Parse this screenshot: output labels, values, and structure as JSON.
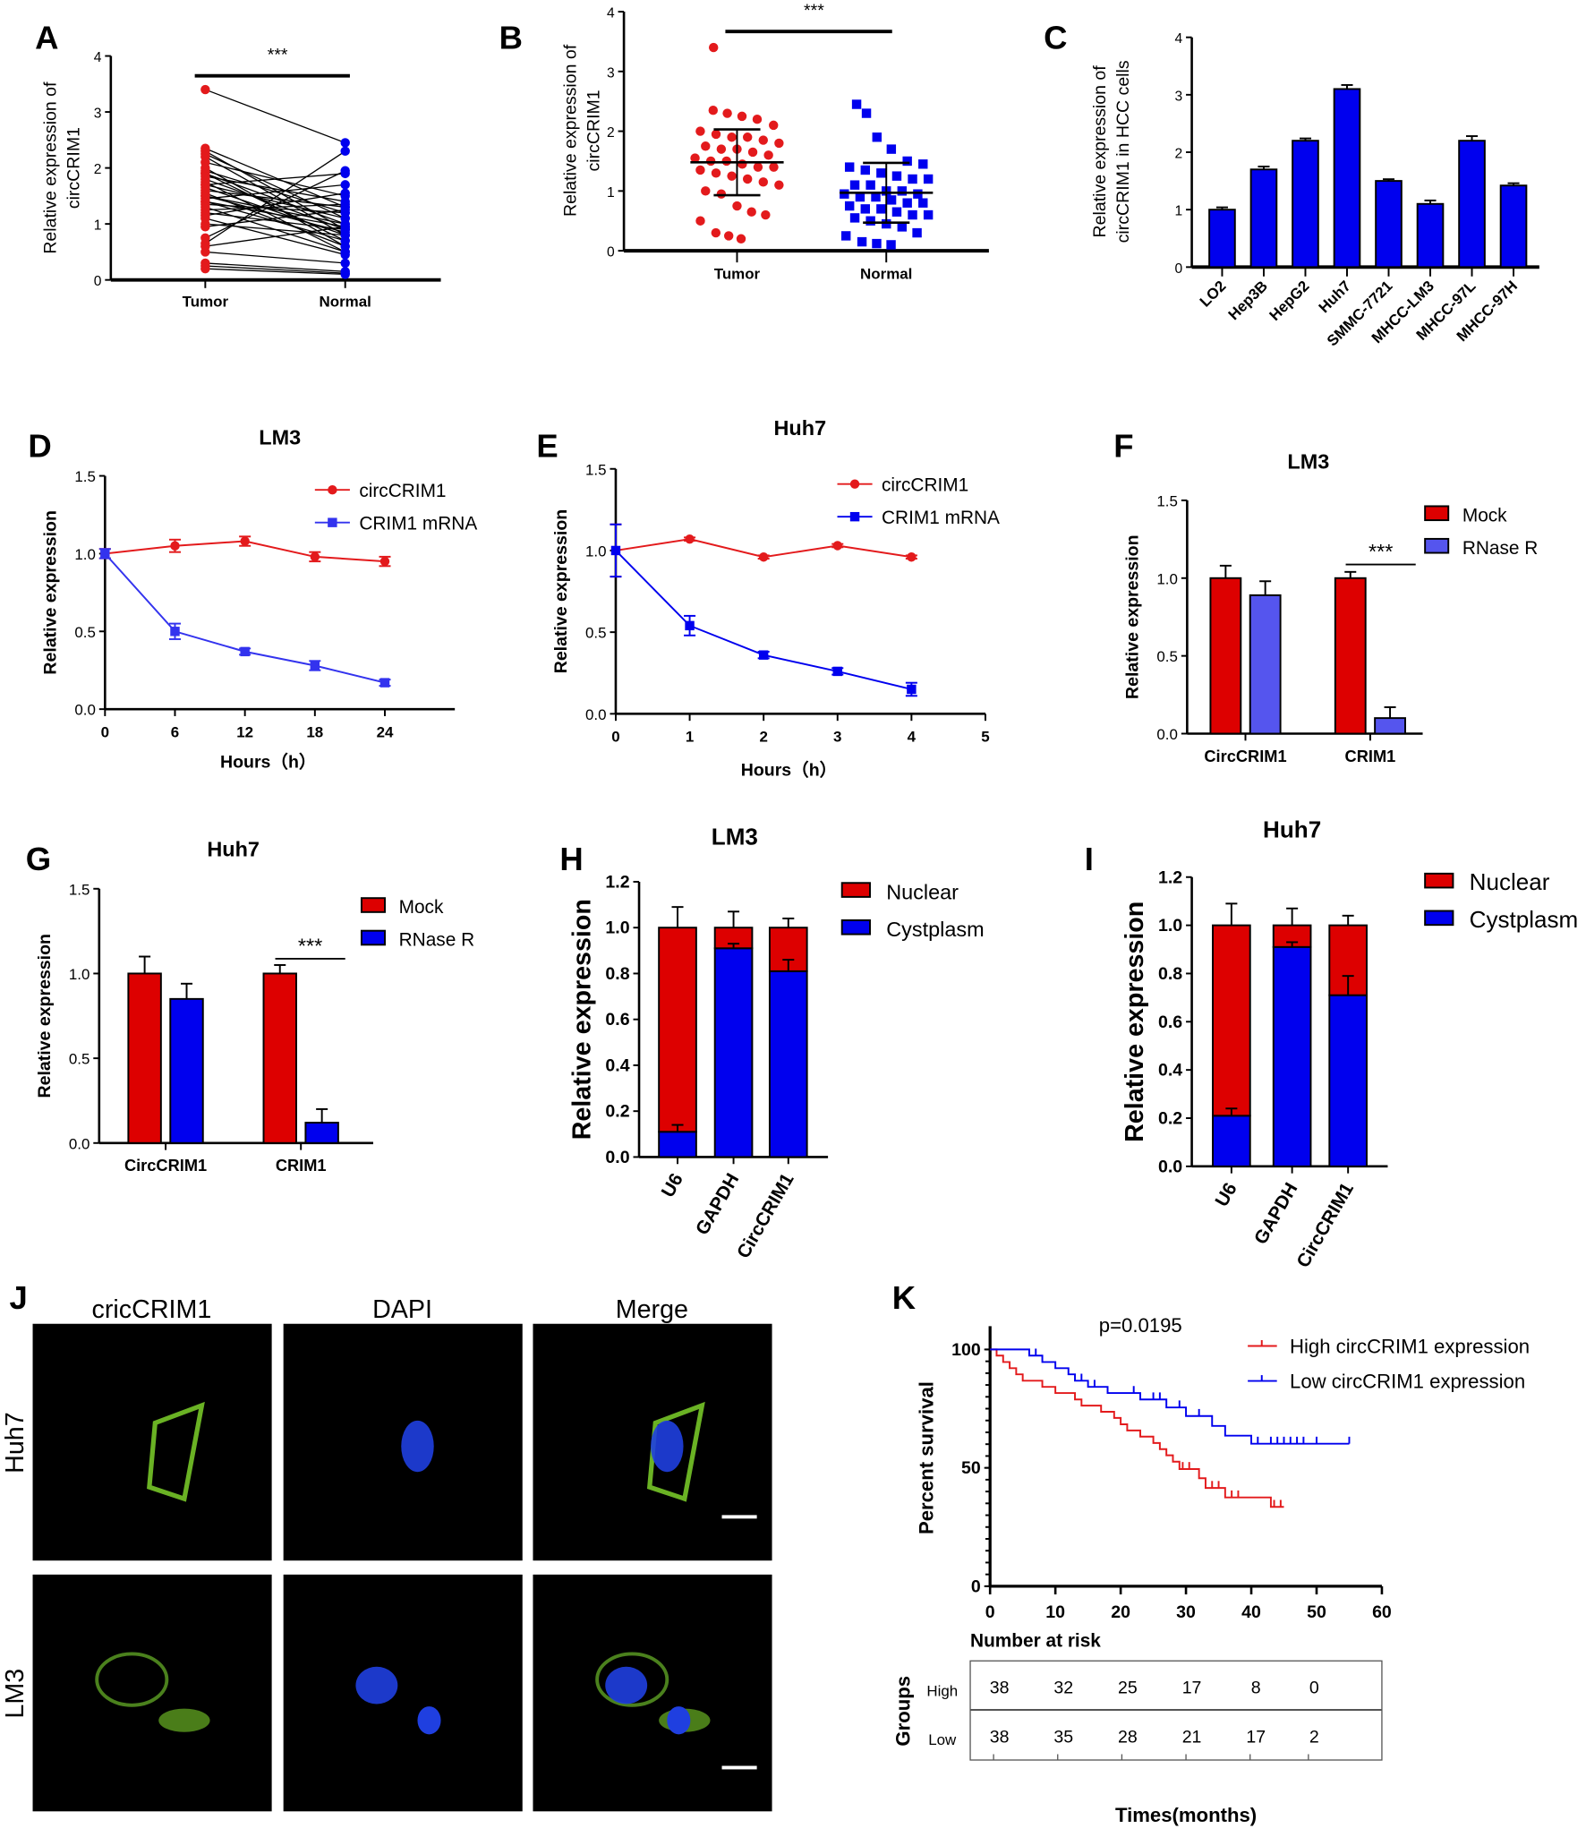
{
  "chart_data": [
    {
      "panel": "A",
      "type": "line",
      "ylabel_lines": [
        "Relative expression of",
        "circCRIM1"
      ],
      "categories": [
        "Tumor",
        "Normal"
      ],
      "yticks": [
        "0",
        "1",
        "2",
        "3",
        "4"
      ],
      "ylim": [
        0,
        4
      ],
      "significance": "***",
      "tumor": [
        3.4,
        2.35,
        2.3,
        2.25,
        2.2,
        2.1,
        2.0,
        1.95,
        1.9,
        1.9,
        1.85,
        1.8,
        1.75,
        1.7,
        1.7,
        1.65,
        1.6,
        1.55,
        1.5,
        1.5,
        1.45,
        1.4,
        1.4,
        1.35,
        1.3,
        1.25,
        1.2,
        1.15,
        1.1,
        1.0,
        0.95,
        0.75,
        0.65,
        0.6,
        0.5,
        0.3,
        0.25,
        0.2
      ],
      "normal": [
        2.45,
        1.3,
        0.9,
        1.1,
        0.8,
        1.5,
        0.6,
        1.2,
        1.0,
        0.7,
        1.4,
        0.9,
        0.5,
        1.9,
        1.1,
        0.8,
        1.3,
        0.6,
        1.0,
        0.85,
        1.7,
        0.7,
        0.95,
        1.2,
        0.5,
        1.35,
        0.9,
        1.55,
        0.45,
        0.8,
        1.25,
        1.95,
        2.3,
        0.95,
        0.3,
        0.15,
        0.12,
        0.1
      ]
    },
    {
      "panel": "B",
      "type": "scatter",
      "ylabel_lines": [
        "Relative expression of",
        "circCRIM1"
      ],
      "categories": [
        "Tumor",
        "Normal"
      ],
      "yticks": [
        "0",
        "1",
        "2",
        "3",
        "4"
      ],
      "ylim": [
        0,
        4
      ],
      "significance": "***",
      "mean": [
        1.48,
        0.97
      ],
      "sd": [
        0.55,
        0.5
      ],
      "tumor": [
        3.4,
        2.35,
        2.3,
        2.25,
        2.2,
        2.1,
        2.0,
        1.95,
        1.9,
        1.9,
        1.85,
        1.8,
        1.75,
        1.7,
        1.7,
        1.65,
        1.6,
        1.55,
        1.5,
        1.5,
        1.45,
        1.4,
        1.4,
        1.35,
        1.3,
        1.25,
        1.2,
        1.15,
        1.1,
        1.0,
        0.95,
        0.75,
        0.65,
        0.6,
        0.5,
        0.3,
        0.25,
        0.2
      ],
      "normal": [
        2.45,
        2.3,
        1.9,
        1.7,
        1.5,
        1.45,
        1.4,
        1.35,
        1.3,
        1.25,
        1.2,
        1.2,
        1.1,
        1.1,
        1.0,
        1.0,
        0.95,
        0.95,
        0.9,
        0.9,
        0.85,
        0.8,
        0.8,
        0.75,
        0.7,
        0.7,
        0.65,
        0.6,
        0.6,
        0.55,
        0.5,
        0.45,
        0.4,
        0.3,
        0.25,
        0.15,
        0.12,
        0.1
      ]
    },
    {
      "panel": "C",
      "type": "bar",
      "ylabel_lines": [
        "Relative expression of",
        "circCRIM1 in HCC cells"
      ],
      "categories": [
        "LO2",
        "Hep3B",
        "HepG2",
        "Huh7",
        "SMMC-7721",
        "MHCC-LM3",
        "MHCC-97L",
        "MHCC-97H"
      ],
      "values": [
        1.0,
        1.7,
        2.2,
        3.1,
        1.5,
        1.1,
        2.2,
        1.42
      ],
      "errors": [
        0.04,
        0.05,
        0.04,
        0.07,
        0.03,
        0.06,
        0.08,
        0.04
      ],
      "yticks": [
        "0",
        "1",
        "2",
        "3",
        "4"
      ],
      "ylim": [
        0,
        4
      ],
      "color": "#0000ee"
    },
    {
      "panel": "D",
      "type": "line",
      "title": "LM3",
      "xlabel": "Hours（h）",
      "ylabel": "Relative expression",
      "x": [
        0,
        6,
        12,
        18,
        24
      ],
      "xticks": [
        "0",
        "6",
        "12",
        "18",
        "24"
      ],
      "xlim": [
        0,
        30
      ],
      "yticks": [
        "0.0",
        "0.5",
        "1.0",
        "1.5"
      ],
      "ylim": [
        0,
        1.5
      ],
      "series": [
        {
          "name": "circCRIM1",
          "values": [
            1.0,
            1.05,
            1.08,
            0.98,
            0.95
          ],
          "errors": [
            0.03,
            0.04,
            0.03,
            0.03,
            0.03
          ],
          "color": "#e31a1c"
        },
        {
          "name": "CRIM1 mRNA",
          "values": [
            1.0,
            0.5,
            0.37,
            0.28,
            0.17
          ],
          "errors": [
            0.03,
            0.05,
            0.02,
            0.03,
            0.02
          ],
          "color": "#3333ee"
        }
      ]
    },
    {
      "panel": "E",
      "type": "line",
      "title": "Huh7",
      "xlabel": "Hours（h）",
      "ylabel": "Relative expression",
      "x": [
        0,
        1,
        2,
        3,
        4
      ],
      "xticks": [
        "0",
        "1",
        "2",
        "3",
        "4",
        "5"
      ],
      "xlim": [
        0,
        5
      ],
      "yticks": [
        "0.0",
        "0.5",
        "1.0",
        "1.5"
      ],
      "ylim": [
        0,
        1.5
      ],
      "series": [
        {
          "name": "circCRIM1",
          "values": [
            1.0,
            1.07,
            0.96,
            1.03,
            0.96
          ],
          "errors": [
            0.16,
            0.01,
            0.01,
            0.01,
            0.01
          ],
          "color": "#e31a1c"
        },
        {
          "name": "CRIM1 mRNA",
          "values": [
            1.0,
            0.54,
            0.36,
            0.26,
            0.15
          ],
          "errors": [
            0.16,
            0.06,
            0.02,
            0.02,
            0.04
          ],
          "color": "#0000ee"
        }
      ]
    },
    {
      "panel": "F",
      "type": "bar",
      "title": "LM3",
      "ylabel": "Relative expression",
      "categories": [
        "CircCRIM1",
        "CRIM1"
      ],
      "yticks": [
        "0.0",
        "0.5",
        "1.0",
        "1.5"
      ],
      "ylim": [
        0,
        1.5
      ],
      "significance": "***",
      "series": [
        {
          "name": "Mock",
          "values": [
            1.0,
            1.0
          ],
          "errors": [
            0.08,
            0.04
          ],
          "color": "#dd0000"
        },
        {
          "name": "RNase R",
          "values": [
            0.89,
            0.1
          ],
          "errors": [
            0.09,
            0.07
          ],
          "color": "#5555ee"
        }
      ]
    },
    {
      "panel": "G",
      "type": "bar",
      "title": "Huh7",
      "ylabel": "Relative expression",
      "categories": [
        "CircCRIM1",
        "CRIM1"
      ],
      "yticks": [
        "0.0",
        "0.5",
        "1.0",
        "1.5"
      ],
      "ylim": [
        0,
        1.5
      ],
      "significance": "***",
      "series": [
        {
          "name": "Mock",
          "values": [
            1.0,
            1.0
          ],
          "errors": [
            0.1,
            0.05
          ],
          "color": "#dd0000"
        },
        {
          "name": "RNase R",
          "values": [
            0.85,
            0.12
          ],
          "errors": [
            0.09,
            0.08
          ],
          "color": "#0000ee"
        }
      ]
    },
    {
      "panel": "H",
      "type": "bar",
      "stacked": true,
      "title": "LM3",
      "ylabel": "Relative expression",
      "categories": [
        "U6",
        "GAPDH",
        "CircCRIM1"
      ],
      "yticks": [
        "0.0",
        "0.2",
        "0.4",
        "0.6",
        "0.8",
        "1.0",
        "1.2"
      ],
      "ylim": [
        0,
        1.2
      ],
      "series": [
        {
          "name": "Nuclear",
          "values": [
            0.89,
            0.09,
            0.19
          ],
          "errors": [
            0.09,
            0.07,
            0.04
          ],
          "color": "#dd0000"
        },
        {
          "name": "Cystplasm",
          "values": [
            0.11,
            0.91,
            0.81
          ],
          "errors": [
            0.03,
            0.02,
            0.05
          ],
          "color": "#0000ee"
        }
      ]
    },
    {
      "panel": "I",
      "type": "bar",
      "stacked": true,
      "title": "Huh7",
      "ylabel": "Relative expression",
      "categories": [
        "U6",
        "GAPDH",
        "CircCRIM1"
      ],
      "yticks": [
        "0.0",
        "0.2",
        "0.4",
        "0.6",
        "0.8",
        "1.0",
        "1.2"
      ],
      "ylim": [
        0,
        1.2
      ],
      "series": [
        {
          "name": "Nuclear",
          "values": [
            0.79,
            0.09,
            0.29
          ],
          "errors": [
            0.09,
            0.07,
            0.04
          ],
          "color": "#dd0000"
        },
        {
          "name": "Cystplasm",
          "values": [
            0.21,
            0.91,
            0.71
          ],
          "errors": [
            0.03,
            0.02,
            0.08
          ],
          "color": "#0000ee"
        }
      ]
    },
    {
      "panel": "K",
      "type": "line",
      "title": "",
      "annotation": "p=0.0195",
      "xlabel": "Times(months)",
      "ylabel": "Percent survival",
      "xticks": [
        "0",
        "10",
        "20",
        "30",
        "40",
        "50",
        "60"
      ],
      "xlim": [
        0,
        60
      ],
      "yticks": [
        "0",
        "50",
        "100"
      ],
      "ylim": [
        0,
        100
      ],
      "series": [
        {
          "name": "High circCRIM1 expression",
          "color": "#e31a1c",
          "steps": [
            [
              0,
              100
            ],
            [
              1,
              97.4
            ],
            [
              2,
              94.7
            ],
            [
              3,
              92.1
            ],
            [
              4,
              89.5
            ],
            [
              5,
              86.8
            ],
            [
              8,
              84.2
            ],
            [
              10,
              81.6
            ],
            [
              13,
              78.9
            ],
            [
              14,
              76.3
            ],
            [
              17,
              73.7
            ],
            [
              19,
              71.1
            ],
            [
              20,
              68.4
            ],
            [
              21,
              65.8
            ],
            [
              23,
              63.2
            ],
            [
              25,
              60.5
            ],
            [
              26,
              57.9
            ],
            [
              27,
              55.3
            ],
            [
              28,
              52.6
            ],
            [
              29,
              49.5
            ],
            [
              32,
              45.6
            ],
            [
              33,
              41.5
            ],
            [
              36,
              37.5
            ],
            [
              43,
              33.5
            ],
            [
              45,
              33.5
            ]
          ],
          "censored": [
            29.5,
            30.5,
            34,
            35,
            37,
            38,
            43.5,
            44.5
          ]
        },
        {
          "name": "Low  circCRIM1 expression",
          "color": "#0000ee",
          "steps": [
            [
              0,
              100
            ],
            [
              6,
              97.4
            ],
            [
              8,
              94.7
            ],
            [
              10,
              92.1
            ],
            [
              12,
              89.5
            ],
            [
              13,
              86.8
            ],
            [
              15,
              84.2
            ],
            [
              18,
              81.6
            ],
            [
              23,
              78.9
            ],
            [
              27,
              75.5
            ],
            [
              30,
              71.9
            ],
            [
              34,
              67.7
            ],
            [
              36,
              63.6
            ],
            [
              40,
              60.2
            ],
            [
              55,
              60.2
            ]
          ],
          "censored": [
            7,
            14,
            16,
            22,
            25,
            26,
            29,
            32,
            41,
            43,
            44,
            45,
            46,
            47,
            48,
            50,
            55
          ]
        }
      ],
      "risk_table": {
        "title": "Number at risk",
        "groups_label": "Groups",
        "rows": [
          {
            "group": "High",
            "values": [
              "38",
              "32",
              "25",
              "17",
              "8",
              "0"
            ]
          },
          {
            "group": "Low",
            "values": [
              "38",
              "35",
              "28",
              "21",
              "17",
              "2"
            ]
          }
        ]
      }
    }
  ],
  "panel_J": {
    "label": "J",
    "columns": [
      "cricCRIM1",
      "DAPI",
      "Merge"
    ],
    "rows": [
      "Huh7",
      "LM3"
    ]
  }
}
